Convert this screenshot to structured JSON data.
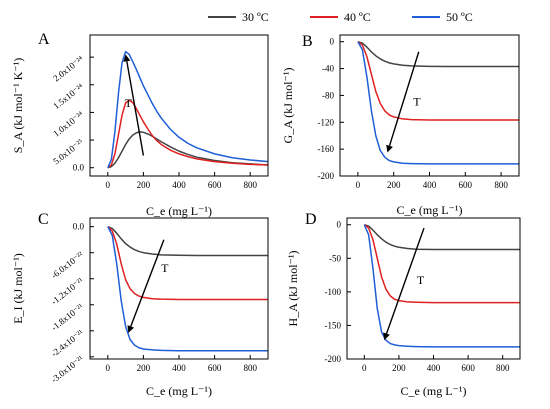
{
  "legend": {
    "entries": [
      {
        "label": "30 ºC",
        "color": "#444444"
      },
      {
        "label": "40 ºC",
        "color": "#e02020"
      },
      {
        "label": "50 ºC",
        "color": "#1f5fd6"
      }
    ]
  },
  "chart_data": [
    {
      "panel": "A",
      "type": "line",
      "xlabel": "C_e (mg L⁻¹)",
      "ylabel": "S_A (kJ mol⁻¹ K⁻¹)",
      "xlim": [
        -100,
        900
      ],
      "ylim": [
        -1.5e-25,
        2.4e-24
      ],
      "xticks": [
        0,
        200,
        400,
        600,
        800
      ],
      "yticks": [
        0,
        5e-25,
        1e-24,
        1.5e-24,
        2e-24
      ],
      "ytick_labels": [
        "0.0",
        "5.0x10⁻²⁵",
        "1.0x10⁻²⁴",
        "1.5x10⁻²⁴",
        "2.0x10⁻²⁴"
      ],
      "arrow_label": "T",
      "arrow": {
        "from": [
          200,
          2.2e-25
        ],
        "to": [
          100,
          2.05e-24
        ]
      },
      "t_pos": [
        115,
        1.1e-24
      ],
      "series": [
        {
          "name": "30 ºC",
          "x": [
            0,
            20,
            40,
            60,
            80,
            100,
            120,
            140,
            160,
            180,
            200,
            225,
            250,
            275,
            300,
            350,
            400,
            450,
            500,
            600,
            700,
            800,
            900
          ],
          "y": [
            0,
            2e-26,
            8e-26,
            1.8e-25,
            3e-25,
            4.2e-25,
            5.2e-25,
            5.9e-25,
            6.3e-25,
            6.5e-25,
            6.4e-25,
            6.1e-25,
            5.7e-25,
            5.2e-25,
            4.7e-25,
            3.8e-25,
            3e-25,
            2.4e-25,
            1.9e-25,
            1.3e-25,
            9e-26,
            7e-26,
            5e-26
          ]
        },
        {
          "name": "40 ºC",
          "x": [
            0,
            20,
            40,
            60,
            80,
            100,
            120,
            140,
            160,
            180,
            200,
            225,
            250,
            275,
            300,
            350,
            400,
            450,
            500,
            600,
            700,
            800,
            900
          ],
          "y": [
            0,
            5e-26,
            2.5e-25,
            6e-25,
            9.5e-25,
            1.17e-24,
            1.22e-24,
            1.18e-24,
            1.07e-24,
            9.5e-25,
            8.3e-25,
            7e-25,
            5.8e-25,
            4.9e-25,
            4.2e-25,
            3.2e-25,
            2.5e-25,
            2e-25,
            1.6e-25,
            1.1e-25,
            8e-26,
            6e-26,
            5e-26
          ]
        },
        {
          "name": "50 ºC",
          "x": [
            0,
            20,
            40,
            60,
            80,
            100,
            120,
            140,
            160,
            180,
            200,
            225,
            250,
            275,
            300,
            350,
            400,
            450,
            500,
            600,
            700,
            800,
            900
          ],
          "y": [
            0,
            1.5e-25,
            6.5e-25,
            1.35e-24,
            1.9e-24,
            2.1e-24,
            2.05e-24,
            1.92e-24,
            1.78e-24,
            1.63e-24,
            1.48e-24,
            1.32e-24,
            1.16e-24,
            1.02e-24,
            9e-25,
            7e-25,
            5.5e-25,
            4.4e-25,
            3.6e-25,
            2.5e-25,
            1.8e-25,
            1.4e-25,
            1.1e-25
          ]
        }
      ]
    },
    {
      "panel": "B",
      "type": "line",
      "xlabel": "C_e (mg L⁻¹)",
      "ylabel": "G_A (kJ mol⁻¹)",
      "xlim": [
        -100,
        900
      ],
      "ylim": [
        -200,
        10
      ],
      "xticks": [
        0,
        200,
        400,
        600,
        800
      ],
      "yticks": [
        0,
        -40,
        -80,
        -120,
        -160,
        -200
      ],
      "ytick_labels": [
        "0",
        "-40",
        "-80",
        "-120",
        "-160",
        "-200"
      ],
      "arrow_label": "T",
      "arrow": {
        "from": [
          340,
          -15
        ],
        "to": [
          165,
          -165
        ]
      },
      "t_pos": [
        330,
        -95
      ],
      "series": [
        {
          "name": "30 ºC",
          "x": [
            0,
            25,
            50,
            75,
            100,
            125,
            150,
            175,
            200,
            250,
            300,
            400,
            500,
            600,
            700,
            800,
            900
          ],
          "y": [
            0,
            -2,
            -8,
            -15,
            -21,
            -25.5,
            -29,
            -31.5,
            -33,
            -35,
            -36,
            -36.8,
            -37,
            -37,
            -37,
            -37,
            -37
          ]
        },
        {
          "name": "40 ºC",
          "x": [
            0,
            25,
            50,
            75,
            100,
            125,
            150,
            175,
            200,
            250,
            300,
            400,
            500,
            600,
            700,
            800,
            900
          ],
          "y": [
            0,
            -5,
            -22,
            -48,
            -74,
            -92,
            -103,
            -109,
            -112,
            -115,
            -116,
            -116.5,
            -116.5,
            -116.5,
            -116.5,
            -116.5,
            -116.5
          ]
        },
        {
          "name": "50 ºC",
          "x": [
            0,
            25,
            50,
            75,
            100,
            125,
            150,
            175,
            200,
            250,
            300,
            400,
            500,
            600,
            700,
            800,
            900
          ],
          "y": [
            0,
            -12,
            -52,
            -102,
            -140,
            -162,
            -172,
            -177,
            -179,
            -181,
            -181.5,
            -182,
            -182,
            -182,
            -182,
            -182,
            -182
          ]
        }
      ]
    },
    {
      "panel": "C",
      "type": "line",
      "xlabel": "C_e (mg L⁻¹)",
      "ylabel": "E_I (kJ mol⁻¹)",
      "xlim": [
        -100,
        900
      ],
      "ylim": [
        -3.05e-21,
        2e-22
      ],
      "xticks": [
        0,
        200,
        400,
        600,
        800
      ],
      "yticks": [
        0,
        -6e-22,
        -1.2e-21,
        -1.8e-21,
        -2.4e-21,
        -3e-21
      ],
      "ytick_labels": [
        "0.0",
        "-6.0x10⁻²²",
        "-1.2x10⁻²¹",
        "-1.8x10⁻²¹",
        "-2.4x10⁻²¹",
        "-3.0x10⁻²¹"
      ],
      "arrow_label": "T",
      "arrow": {
        "from": [
          315,
          -3e-22
        ],
        "to": [
          115,
          -2.45e-21
        ]
      },
      "t_pos": [
        320,
        -1.05e-21
      ],
      "series": [
        {
          "name": "30 ºC",
          "x": [
            0,
            25,
            50,
            75,
            100,
            125,
            150,
            175,
            200,
            250,
            300,
            400,
            500,
            600,
            700,
            800,
            900
          ],
          "y": [
            0,
            -4e-23,
            -1.5e-22,
            -2.8e-22,
            -3.9e-22,
            -4.7e-22,
            -5.3e-22,
            -5.7e-22,
            -6e-22,
            -6.3e-22,
            -6.5e-22,
            -6.6e-22,
            -6.65e-22,
            -6.65e-22,
            -6.65e-22,
            -6.65e-22,
            -6.65e-22
          ]
        },
        {
          "name": "40 ºC",
          "x": [
            0,
            25,
            50,
            75,
            100,
            125,
            150,
            175,
            200,
            250,
            300,
            400,
            500,
            600,
            700,
            800,
            900
          ],
          "y": [
            0,
            -1e-22,
            -4e-22,
            -8.5e-22,
            -1.22e-21,
            -1.43e-21,
            -1.54e-21,
            -1.6e-21,
            -1.63e-21,
            -1.66e-21,
            -1.67e-21,
            -1.68e-21,
            -1.68e-21,
            -1.68e-21,
            -1.68e-21,
            -1.68e-21,
            -1.68e-21
          ]
        },
        {
          "name": "50 ºC",
          "x": [
            0,
            25,
            50,
            75,
            100,
            125,
            150,
            175,
            200,
            250,
            300,
            400,
            500,
            600,
            700,
            800,
            900
          ],
          "y": [
            0,
            -2e-22,
            -8.5e-22,
            -1.7e-21,
            -2.3e-21,
            -2.6e-21,
            -2.73e-21,
            -2.79e-21,
            -2.82e-21,
            -2.84e-21,
            -2.85e-21,
            -2.86e-21,
            -2.86e-21,
            -2.86e-21,
            -2.86e-21,
            -2.86e-21,
            -2.86e-21
          ]
        }
      ]
    },
    {
      "panel": "D",
      "type": "line",
      "xlabel": "C_e (mg L⁻¹)",
      "ylabel": "H_A (kJ mol⁻¹)",
      "xlim": [
        -100,
        900
      ],
      "ylim": [
        -200,
        10
      ],
      "xticks": [
        0,
        200,
        400,
        600,
        800
      ],
      "yticks": [
        0,
        -50,
        -100,
        -150,
        -200
      ],
      "ytick_labels": [
        "0",
        "-50",
        "-100",
        "-150",
        "-200"
      ],
      "arrow_label": "T",
      "arrow": {
        "from": [
          345,
          -5
        ],
        "to": [
          115,
          -172
        ]
      },
      "t_pos": [
        325,
        -88
      ],
      "series": [
        {
          "name": "30 ºC",
          "x": [
            0,
            25,
            50,
            75,
            100,
            125,
            150,
            175,
            200,
            250,
            300,
            400,
            500,
            600,
            700,
            800,
            900
          ],
          "y": [
            0,
            -2,
            -8,
            -15,
            -21,
            -26,
            -29.5,
            -32,
            -33.5,
            -35.5,
            -36.5,
            -37,
            -37,
            -37,
            -37,
            -37,
            -37
          ]
        },
        {
          "name": "40 ºC",
          "x": [
            0,
            25,
            50,
            75,
            100,
            125,
            150,
            175,
            200,
            250,
            300,
            400,
            500,
            600,
            700,
            800,
            900
          ],
          "y": [
            0,
            -5,
            -22,
            -50,
            -78,
            -96,
            -106,
            -111,
            -113,
            -115,
            -115.5,
            -116,
            -116,
            -116,
            -116,
            -116,
            -116
          ]
        },
        {
          "name": "50 ºC",
          "x": [
            0,
            25,
            50,
            75,
            100,
            125,
            150,
            175,
            200,
            250,
            300,
            400,
            500,
            600,
            700,
            800,
            900
          ],
          "y": [
            0,
            -15,
            -65,
            -125,
            -160,
            -172,
            -177,
            -179,
            -180,
            -181,
            -181.5,
            -182,
            -182,
            -182,
            -182,
            -182,
            -182
          ]
        }
      ]
    }
  ]
}
